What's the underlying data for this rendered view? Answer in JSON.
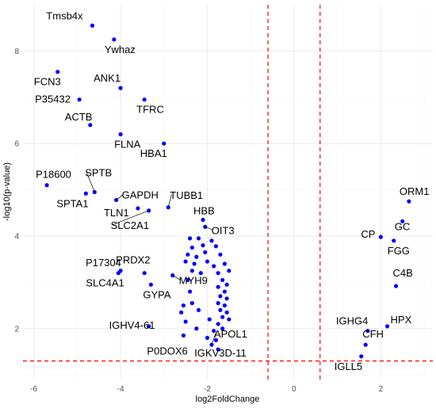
{
  "chart_data": {
    "type": "scatter",
    "title": "",
    "xlabel": "log2FoldChange",
    "ylabel": "-log10(p-value)",
    "xlim": [
      -6.25,
      3.2
    ],
    "ylim": [
      0.9,
      9.0
    ],
    "x_ticks": [
      -6,
      -4,
      -2,
      0,
      2
    ],
    "x_tick_labels": [
      "-6",
      "-4",
      "-2",
      "0",
      "2"
    ],
    "y_ticks": [
      2,
      4,
      6,
      8
    ],
    "y_tick_labels": [
      "2",
      "4",
      "6",
      "8"
    ],
    "grid": true,
    "legend": "none",
    "point_color": "#0000FF",
    "threshold_color": "#FF0000",
    "thresholds": {
      "x": [
        -0.6,
        0.6
      ],
      "y": 1.3
    },
    "labeled_points": [
      {
        "gene": "Tmsb4x",
        "x": -4.65,
        "y": 8.55
      },
      {
        "gene": "Ywhaz",
        "x": -4.15,
        "y": 8.25
      },
      {
        "gene": "FCN3",
        "x": -5.45,
        "y": 7.55
      },
      {
        "gene": "ANK1",
        "x": -4.0,
        "y": 7.2
      },
      {
        "gene": "P35432",
        "x": -4.95,
        "y": 6.95
      },
      {
        "gene": "TFRC",
        "x": -3.45,
        "y": 6.95
      },
      {
        "gene": "ACTB",
        "x": -4.7,
        "y": 6.4
      },
      {
        "gene": "FLNA",
        "x": -4.0,
        "y": 6.2
      },
      {
        "gene": "HBA1",
        "x": -3.0,
        "y": 6.0
      },
      {
        "gene": "P18600",
        "x": -5.7,
        "y": 5.1
      },
      {
        "gene": "SPTB",
        "x": -4.6,
        "y": 4.95
      },
      {
        "gene": "SPTA1",
        "x": -4.8,
        "y": 4.92
      },
      {
        "gene": "GAPDH",
        "x": -4.1,
        "y": 4.78
      },
      {
        "gene": "TUBB1",
        "x": -2.9,
        "y": 4.62
      },
      {
        "gene": "TLN1",
        "x": -3.6,
        "y": 4.6
      },
      {
        "gene": "SLC2A1",
        "x": -3.35,
        "y": 4.55
      },
      {
        "gene": "HBB",
        "x": -2.1,
        "y": 4.35
      },
      {
        "gene": "OIT3",
        "x": -2.05,
        "y": 4.2
      },
      {
        "gene": "P17304",
        "x": -4.0,
        "y": 3.25
      },
      {
        "gene": "SLC4A1",
        "x": -4.05,
        "y": 3.2
      },
      {
        "gene": "PRDX2",
        "x": -3.45,
        "y": 3.2
      },
      {
        "gene": "MYH9",
        "x": -2.8,
        "y": 3.15
      },
      {
        "gene": "GYPA",
        "x": -3.3,
        "y": 2.95
      },
      {
        "gene": "IGHV4-61",
        "x": -3.35,
        "y": 2.05
      },
      {
        "gene": "P0DOX6",
        "x": -2.55,
        "y": 1.85
      },
      {
        "gene": "APOL1",
        "x": -1.9,
        "y": 1.65
      },
      {
        "gene": "IGKV3D-11",
        "x": -1.75,
        "y": 1.55
      },
      {
        "gene": "ORM1",
        "x": 2.65,
        "y": 4.75
      },
      {
        "gene": "CP",
        "x": 2.0,
        "y": 3.98
      },
      {
        "gene": "GC",
        "x": 2.5,
        "y": 4.32
      },
      {
        "gene": "FGG",
        "x": 2.3,
        "y": 3.9
      },
      {
        "gene": "C4B",
        "x": 2.35,
        "y": 2.92
      },
      {
        "gene": "IGHG4",
        "x": 1.7,
        "y": 1.95
      },
      {
        "gene": "HPX",
        "x": 2.15,
        "y": 2.05
      },
      {
        "gene": "CFH",
        "x": 1.65,
        "y": 1.65
      },
      {
        "gene": "IGLL5",
        "x": 1.55,
        "y": 1.4
      }
    ],
    "unlabeled_points": [
      {
        "x": -2.4,
        "y": 3.95
      },
      {
        "x": -2.2,
        "y": 3.95
      },
      {
        "x": -1.9,
        "y": 3.9
      },
      {
        "x": -2.35,
        "y": 3.75
      },
      {
        "x": -2.1,
        "y": 3.8
      },
      {
        "x": -1.8,
        "y": 3.78
      },
      {
        "x": -2.45,
        "y": 3.6
      },
      {
        "x": -2.25,
        "y": 3.55
      },
      {
        "x": -2.05,
        "y": 3.65
      },
      {
        "x": -1.7,
        "y": 3.6
      },
      {
        "x": -2.5,
        "y": 3.45
      },
      {
        "x": -2.3,
        "y": 3.4
      },
      {
        "x": -2.0,
        "y": 3.45
      },
      {
        "x": -1.85,
        "y": 3.35
      },
      {
        "x": -1.6,
        "y": 3.4
      },
      {
        "x": -2.35,
        "y": 3.25
      },
      {
        "x": -2.15,
        "y": 3.2
      },
      {
        "x": -1.75,
        "y": 3.2
      },
      {
        "x": -1.5,
        "y": 3.25
      },
      {
        "x": -2.45,
        "y": 3.05
      },
      {
        "x": -1.65,
        "y": 3.05
      },
      {
        "x": -1.55,
        "y": 2.95
      },
      {
        "x": -1.75,
        "y": 2.9
      },
      {
        "x": -1.6,
        "y": 2.8
      },
      {
        "x": -2.4,
        "y": 2.8
      },
      {
        "x": -1.7,
        "y": 2.7
      },
      {
        "x": -1.55,
        "y": 2.65
      },
      {
        "x": -1.75,
        "y": 2.55
      },
      {
        "x": -1.6,
        "y": 2.5
      },
      {
        "x": -2.55,
        "y": 2.5
      },
      {
        "x": -2.35,
        "y": 2.55
      },
      {
        "x": -1.7,
        "y": 2.4
      },
      {
        "x": -1.55,
        "y": 2.35
      },
      {
        "x": -2.6,
        "y": 2.35
      },
      {
        "x": -2.2,
        "y": 2.4
      },
      {
        "x": -1.65,
        "y": 2.25
      },
      {
        "x": -1.5,
        "y": 2.2
      },
      {
        "x": -2.5,
        "y": 2.15
      },
      {
        "x": -1.95,
        "y": 2.2
      },
      {
        "x": -1.75,
        "y": 2.1
      },
      {
        "x": -2.25,
        "y": 2.0
      },
      {
        "x": -1.85,
        "y": 1.95
      },
      {
        "x": -1.65,
        "y": 2.0
      },
      {
        "x": -2.0,
        "y": 1.8
      },
      {
        "x": -1.8,
        "y": 1.75
      }
    ]
  }
}
